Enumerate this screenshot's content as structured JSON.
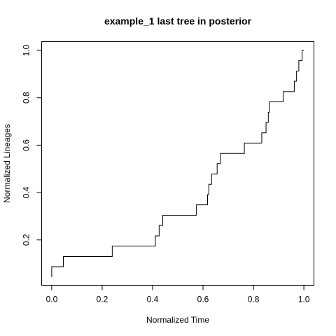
{
  "chart_data": {
    "type": "line",
    "title": "example_1 last tree in posterior",
    "xlabel": "Normalized Time",
    "ylabel": "Normalized Lineages",
    "xlim": [
      -0.04,
      1.04
    ],
    "ylim": [
      0.0087,
      1.037
    ],
    "xticks": [
      0.0,
      0.2,
      0.4,
      0.6,
      0.8,
      1.0
    ],
    "xtick_labels": [
      "0.0",
      "0.2",
      "0.4",
      "0.6",
      "0.8",
      "1.0"
    ],
    "yticks": [
      0.2,
      0.4,
      0.6,
      0.8,
      1.0
    ],
    "ytick_labels": [
      "0.2",
      "0.4",
      "0.6",
      "0.8",
      "1.0"
    ],
    "grid": false,
    "step": true,
    "series": [
      {
        "color": "#000000",
        "x": [
          0.0,
          0.0,
          0.046,
          0.24,
          0.411,
          0.426,
          0.44,
          0.574,
          0.618,
          0.623,
          0.634,
          0.656,
          0.669,
          0.688,
          0.764,
          0.833,
          0.85,
          0.859,
          0.863,
          0.866,
          0.918,
          0.962,
          0.971,
          0.98,
          0.993,
          1.0
        ],
        "y": [
          0.043,
          0.087,
          0.13,
          0.174,
          0.217,
          0.261,
          0.304,
          0.348,
          0.391,
          0.435,
          0.478,
          0.522,
          0.565,
          0.565,
          0.609,
          0.652,
          0.696,
          0.739,
          0.783,
          0.783,
          0.826,
          0.87,
          0.913,
          0.957,
          1.0,
          1.0
        ]
      }
    ]
  }
}
